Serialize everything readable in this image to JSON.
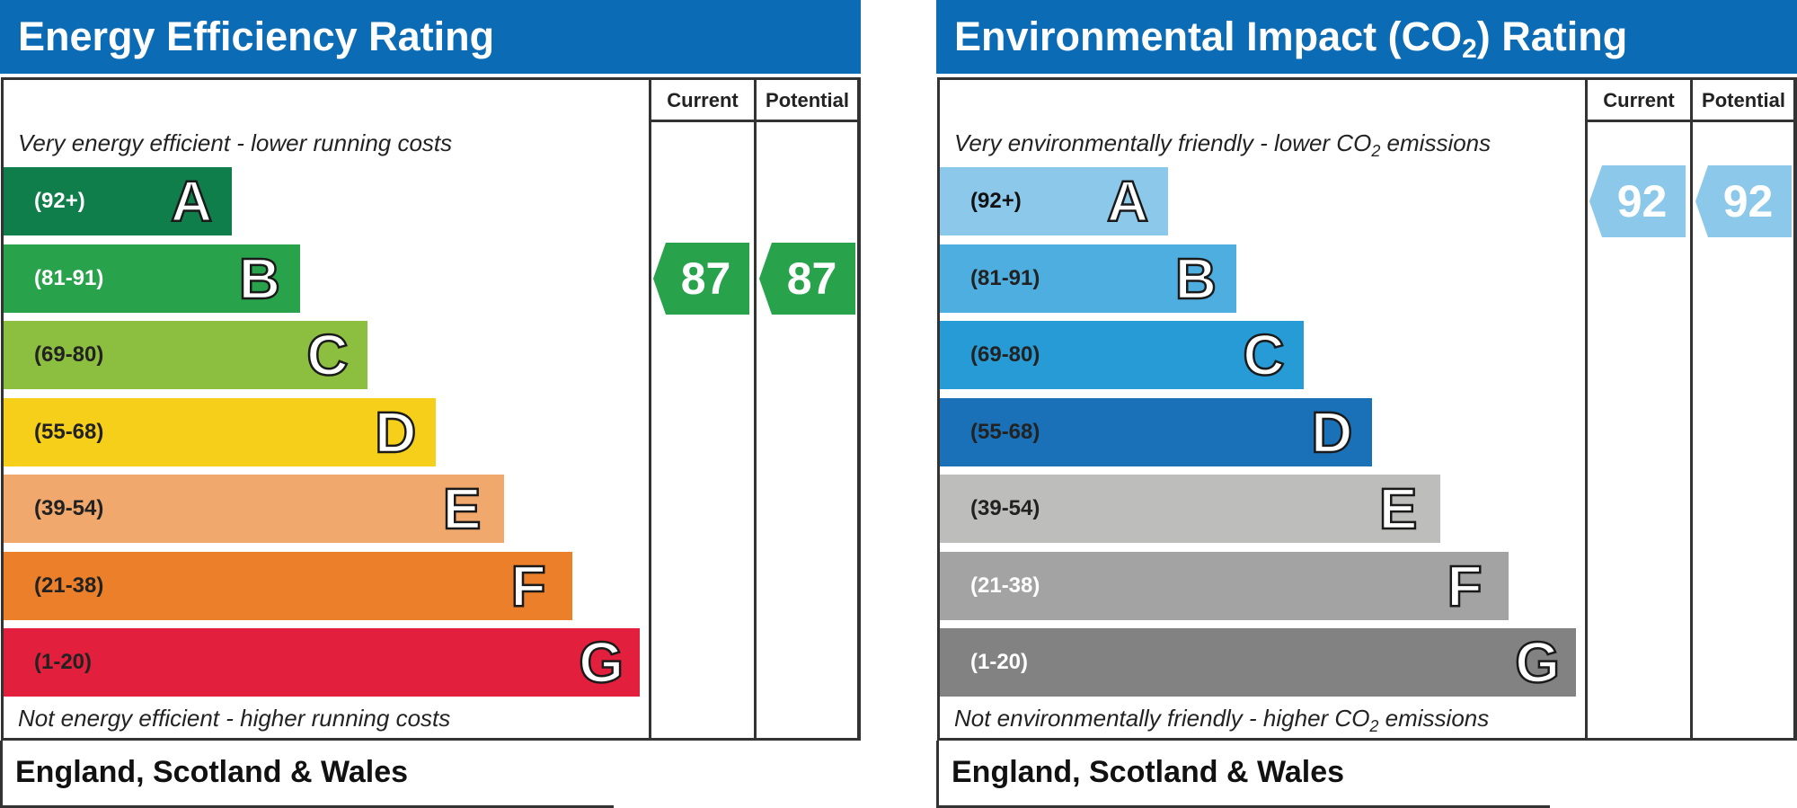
{
  "chart_data": [
    {
      "type": "bar",
      "title": "Energy Efficiency Rating",
      "columns": [
        "Current",
        "Potential"
      ],
      "top_caption": "Very energy efficient - lower running costs",
      "bottom_caption": "Not energy efficient - higher running costs",
      "region": "England, Scotland & Wales",
      "bands": [
        {
          "letter": "A",
          "range": "(92+)",
          "color": "#0f7e4a",
          "text_color": "#ffffff"
        },
        {
          "letter": "B",
          "range": "(81-91)",
          "color": "#29a24c",
          "text_color": "#ffffff"
        },
        {
          "letter": "C",
          "range": "(69-80)",
          "color": "#8cbf3f",
          "text_color": "#222222"
        },
        {
          "letter": "D",
          "range": "(55-68)",
          "color": "#f5cf19",
          "text_color": "#222222"
        },
        {
          "letter": "E",
          "range": "(39-54)",
          "color": "#f1a86c",
          "text_color": "#222222"
        },
        {
          "letter": "F",
          "range": "(21-38)",
          "color": "#ec7f29",
          "text_color": "#222222"
        },
        {
          "letter": "G",
          "range": "(1-20)",
          "color": "#e21f3c",
          "text_color": "#222222"
        }
      ],
      "current": {
        "value": "87",
        "band": "B",
        "color": "#29a24c"
      },
      "potential": {
        "value": "87",
        "band": "B",
        "color": "#29a24c"
      }
    },
    {
      "type": "bar",
      "title_parts": [
        "Environmental Impact (CO",
        "2",
        ") Rating"
      ],
      "columns": [
        "Current",
        "Potential"
      ],
      "top_caption_parts": [
        "Very environmentally friendly - lower CO",
        "2",
        " emissions"
      ],
      "bottom_caption_parts": [
        "Not environmentally friendly - higher CO",
        "2",
        " emissions"
      ],
      "region": "England, Scotland & Wales",
      "bands": [
        {
          "letter": "A",
          "range": "(92+)",
          "color": "#8cc8ea",
          "text_color": "#111111"
        },
        {
          "letter": "B",
          "range": "(81-91)",
          "color": "#4eaee0",
          "text_color": "#222222"
        },
        {
          "letter": "C",
          "range": "(69-80)",
          "color": "#279bd6",
          "text_color": "#222222"
        },
        {
          "letter": "D",
          "range": "(55-68)",
          "color": "#1a71b8",
          "text_color": "#222222"
        },
        {
          "letter": "E",
          "range": "(39-54)",
          "color": "#bdbdbb",
          "text_color": "#222222"
        },
        {
          "letter": "F",
          "range": "(21-38)",
          "color": "#a3a3a3",
          "text_color": "#ffffff"
        },
        {
          "letter": "G",
          "range": "(1-20)",
          "color": "#828282",
          "text_color": "#ffffff"
        }
      ],
      "current": {
        "value": "92",
        "band": "A",
        "color": "#8cc8ea"
      },
      "potential": {
        "value": "92",
        "band": "A",
        "color": "#8cc8ea"
      }
    }
  ]
}
